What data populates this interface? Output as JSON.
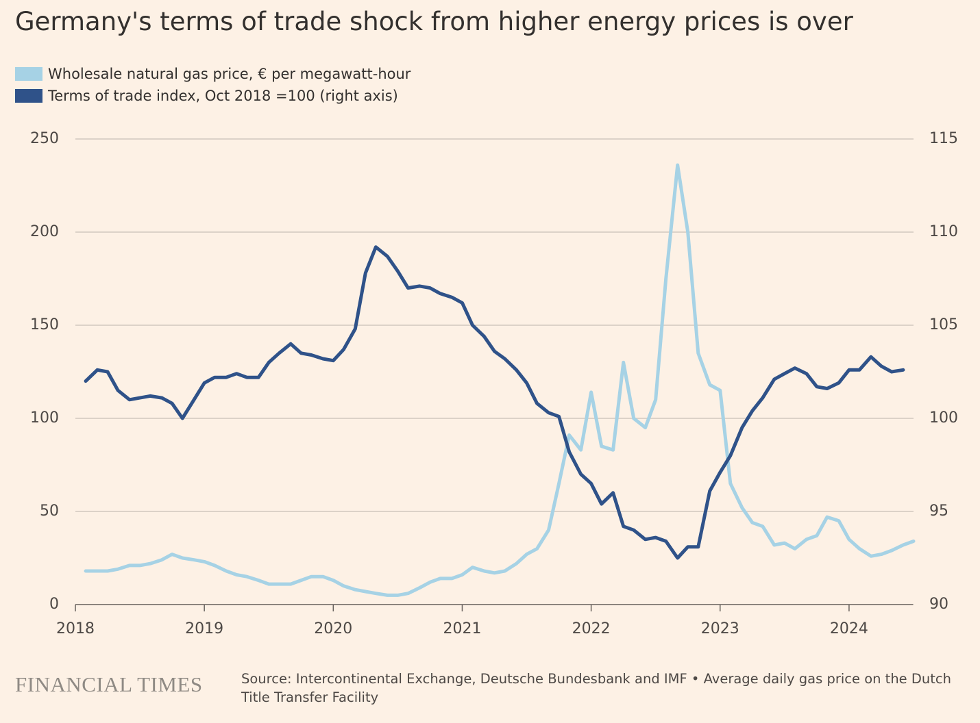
{
  "chart_data": {
    "type": "line",
    "title": "Germany's terms of trade shock from higher energy prices is over",
    "source": "Source: Intercontinental Exchange, Deutsche Bundesbank and IMF • Average daily gas price on the Dutch Title Transfer Facility",
    "brand": "FINANCIAL TIMES",
    "x": [
      2018.08,
      2018.17,
      2018.25,
      2018.33,
      2018.42,
      2018.5,
      2018.58,
      2018.67,
      2018.75,
      2018.83,
      2018.92,
      2019,
      2019.08,
      2019.17,
      2019.25,
      2019.33,
      2019.42,
      2019.5,
      2019.58,
      2019.67,
      2019.75,
      2019.83,
      2019.92,
      2020,
      2020.08,
      2020.17,
      2020.25,
      2020.33,
      2020.42,
      2020.5,
      2020.58,
      2020.67,
      2020.75,
      2020.83,
      2020.92,
      2021,
      2021.08,
      2021.17,
      2021.25,
      2021.33,
      2021.42,
      2021.5,
      2021.58,
      2021.67,
      2021.75,
      2021.83,
      2021.92,
      2022,
      2022.08,
      2022.17,
      2022.25,
      2022.33,
      2022.42,
      2022.5,
      2022.58,
      2022.67,
      2022.75,
      2022.83,
      2022.92,
      2023,
      2023.08,
      2023.17,
      2023.25,
      2023.33,
      2023.42,
      2023.5,
      2023.58,
      2023.67,
      2023.75,
      2023.83,
      2023.92,
      2024,
      2024.08,
      2024.17,
      2024.25,
      2024.33,
      2024.42,
      2024.5
    ],
    "series": [
      {
        "name": "Wholesale natural gas price, € per megawatt-hour",
        "color": "#a6d2e5",
        "values": [
          18,
          18,
          18,
          19,
          21,
          21,
          22,
          24,
          27,
          25,
          24,
          23,
          21,
          18,
          16,
          15,
          13,
          11,
          11,
          11,
          13,
          15,
          15,
          13,
          10,
          8,
          7,
          6,
          5,
          5,
          6,
          9,
          12,
          14,
          14,
          16,
          20,
          18,
          17,
          18,
          22,
          27,
          30,
          40,
          65,
          91,
          83,
          114,
          85,
          83,
          130,
          100,
          95,
          110,
          175,
          236,
          200,
          135,
          118,
          115,
          65,
          52,
          44,
          42,
          32,
          33,
          30,
          35,
          37,
          47,
          45,
          35,
          30,
          26,
          27,
          29,
          32,
          34
        ]
      },
      {
        "name": "Terms of trade index, Oct 2018 =100 (right axis)",
        "color": "#2f5289",
        "axis": "y2",
        "values": [
          102.0,
          102.6,
          102.5,
          101.5,
          101.0,
          101.1,
          101.2,
          101.1,
          100.8,
          100.0,
          101.0,
          101.9,
          102.2,
          102.2,
          102.4,
          102.2,
          102.2,
          103.0,
          103.5,
          104.0,
          103.5,
          103.4,
          103.2,
          103.1,
          103.7,
          104.8,
          107.8,
          109.2,
          108.7,
          107.9,
          107.0,
          107.1,
          107.0,
          106.7,
          106.5,
          106.2,
          105.0,
          104.4,
          103.6,
          103.2,
          102.6,
          101.9,
          100.8,
          100.3,
          100.1,
          98.2,
          97.0,
          96.5,
          95.4,
          96.0,
          94.2,
          94.0,
          93.5,
          93.6,
          93.4,
          92.5,
          93.1,
          93.1,
          96.1,
          97.1,
          98.0,
          99.5,
          100.4,
          101.1,
          102.1,
          102.4,
          102.7,
          102.4,
          101.7,
          101.6,
          101.9,
          102.6,
          102.6,
          103.3,
          102.8,
          102.5,
          102.6,
          null
        ]
      }
    ],
    "xlim": [
      2018,
      2024.5
    ],
    "xticks": [
      2018,
      2019,
      2020,
      2021,
      2022,
      2023,
      2024
    ],
    "ylim": [
      0,
      250
    ],
    "yticks": [
      0,
      50,
      100,
      150,
      200,
      250
    ],
    "y2lim": [
      90,
      115
    ],
    "y2ticks": [
      90,
      95,
      100,
      105,
      110,
      115
    ],
    "grid": true
  }
}
